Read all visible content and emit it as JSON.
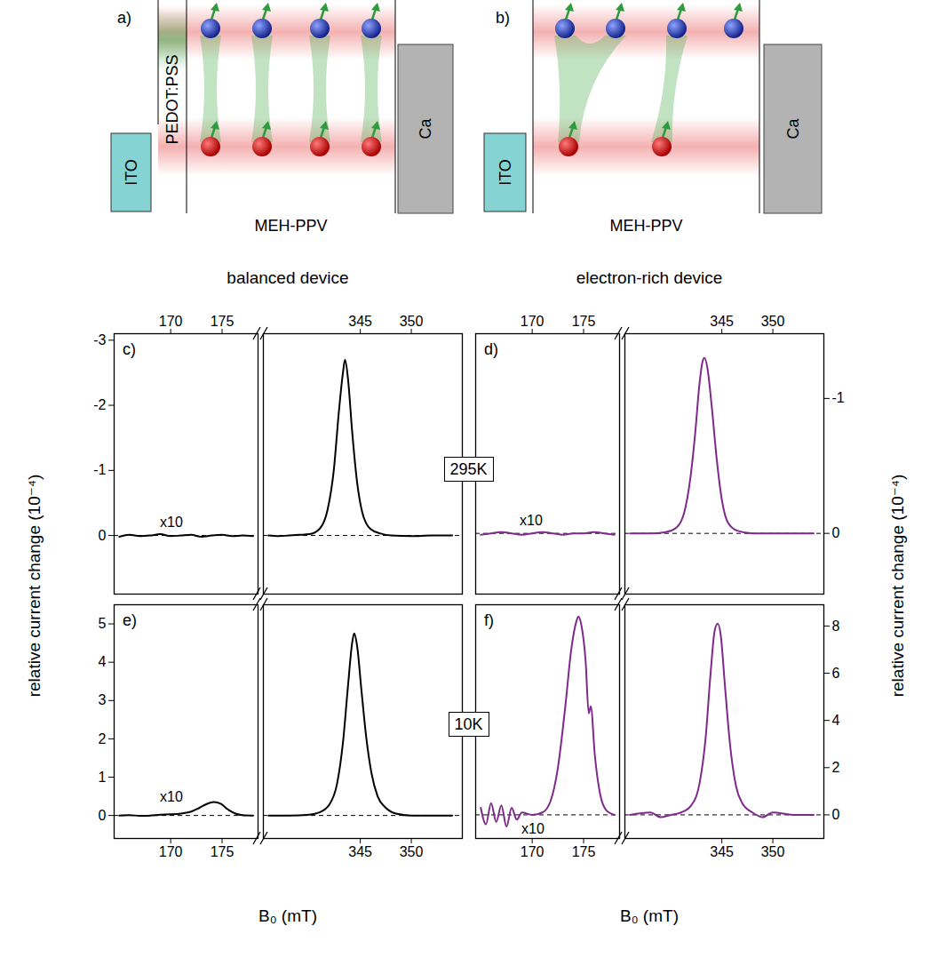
{
  "diagrams": [
    {
      "label": "a)",
      "layers": {
        "anode": "ITO",
        "hole_layer": "PEDOT:PSS",
        "polymer": "MEH-PPV",
        "cathode": "Ca"
      }
    },
    {
      "label": "b)",
      "layers": {
        "anode": "ITO",
        "polymer": "MEH-PPV",
        "cathode": "Ca"
      }
    }
  ],
  "columns": [
    "balanced device",
    "electron-rich device"
  ],
  "temperatures": [
    "295K",
    "10K"
  ],
  "chart_data": [
    {
      "type": "line",
      "title": "c)",
      "annotation": "x10",
      "ylabel": "relative current change (10⁻⁴)",
      "color": "#000000",
      "xlim": [
        [
          164.5,
          178.5
        ],
        [
          335.5,
          355
        ]
      ],
      "xticks": [
        [
          170,
          175
        ],
        [
          345,
          350
        ]
      ],
      "ylim": [
        0.9,
        -3.1
      ],
      "yticks": [
        0,
        -1,
        -2,
        -3
      ],
      "x": [
        [
          165,
          166,
          167,
          168,
          169,
          170,
          171,
          172,
          173,
          174,
          175,
          176,
          177,
          178
        ],
        [
          336,
          337,
          338,
          339,
          340,
          341,
          341.8,
          342.4,
          342.9,
          343.3,
          343.5,
          343.8,
          344.2,
          344.7,
          345.2,
          346,
          347,
          348,
          350,
          352,
          354
        ]
      ],
      "values": [
        [
          0.02,
          -0.01,
          0.01,
          0,
          -0.02,
          0.01,
          0,
          -0.01,
          0.02,
          0,
          -0.01,
          0.01,
          0,
          0.01
        ],
        [
          0,
          0.01,
          0,
          -0.01,
          -0.02,
          -0.1,
          -0.4,
          -1.0,
          -1.9,
          -2.5,
          -2.7,
          -2.4,
          -1.6,
          -0.8,
          -0.35,
          -0.1,
          -0.03,
          0,
          0.01,
          0,
          0
        ]
      ]
    },
    {
      "type": "line",
      "title": "d)",
      "annotation": "x10",
      "ylabel": "relative current change (10⁻⁴)",
      "color": "#7d2a8a",
      "xlim": [
        [
          164.5,
          178.5
        ],
        [
          335.5,
          355
        ]
      ],
      "xticks": [
        [
          170,
          175
        ],
        [
          345,
          350
        ]
      ],
      "ylim": [
        0.45,
        -1.48
      ],
      "yticks": [
        0,
        -1
      ],
      "x": [
        [
          165,
          166,
          167,
          168,
          169,
          170,
          171,
          172,
          173,
          174,
          175,
          176,
          177,
          178
        ],
        [
          336,
          338,
          339.5,
          340.5,
          341.3,
          341.9,
          342.4,
          342.8,
          343.1,
          343.3,
          343.6,
          344,
          344.5,
          345,
          345.6,
          346.5,
          348,
          351,
          354
        ]
      ],
      "values": [
        [
          0.01,
          0,
          -0.01,
          0,
          0.01,
          0,
          -0.01,
          0,
          0.01,
          0,
          0,
          -0.01,
          0,
          0.01
        ],
        [
          0,
          0,
          -0.01,
          -0.04,
          -0.15,
          -0.4,
          -0.75,
          -1.1,
          -1.27,
          -1.3,
          -1.22,
          -0.95,
          -0.55,
          -0.25,
          -0.08,
          -0.02,
          0,
          0,
          0
        ]
      ]
    },
    {
      "type": "line",
      "title": "e)",
      "annotation": "x10",
      "xlabel": "B₀ (mT)",
      "color": "#000000",
      "xlim": [
        [
          164.5,
          178.5
        ],
        [
          335.5,
          355
        ]
      ],
      "xticks": [
        [
          170,
          175
        ],
        [
          345,
          350
        ]
      ],
      "ylim": [
        -0.6,
        5.5
      ],
      "yticks": [
        0,
        1,
        2,
        3,
        4,
        5
      ],
      "x": [
        [
          165,
          166,
          167,
          168,
          169,
          170,
          171,
          172,
          172.8,
          173.5,
          174.2,
          174.9,
          175.6,
          176.3,
          177,
          178
        ],
        [
          336,
          338,
          340,
          341,
          342,
          342.7,
          343.3,
          343.8,
          344.2,
          344.4,
          344.7,
          345.1,
          345.6,
          346.1,
          346.7,
          347.5,
          348.5,
          350,
          352,
          354
        ]
      ],
      "values": [
        [
          0,
          0.01,
          -0.01,
          0,
          0.02,
          0.03,
          0.05,
          0.1,
          0.2,
          0.3,
          0.35,
          0.3,
          0.15,
          0.05,
          0.01,
          0
        ],
        [
          0,
          0,
          0.02,
          0.08,
          0.3,
          0.8,
          1.9,
          3.4,
          4.5,
          4.75,
          4.4,
          3.3,
          2.0,
          1.1,
          0.5,
          0.2,
          0.05,
          0,
          0,
          0
        ]
      ]
    },
    {
      "type": "line",
      "title": "f)",
      "annotation": "x10",
      "xlabel": "B₀ (mT)",
      "color": "#7d2a8a",
      "xlim": [
        [
          164.5,
          178.5
        ],
        [
          335.5,
          355
        ]
      ],
      "xticks": [
        [
          170,
          175
        ],
        [
          345,
          350
        ]
      ],
      "ylim": [
        -1,
        8.9
      ],
      "yticks": [
        0,
        2,
        4,
        6,
        8
      ],
      "x": [
        [
          165,
          165.5,
          166,
          166.5,
          167,
          167.5,
          168,
          168.5,
          169,
          170,
          171,
          171.8,
          172.5,
          173.2,
          173.8,
          174.3,
          174.5,
          174.8,
          175.2,
          175.5,
          175.7,
          176.1,
          176.6,
          177.2,
          178
        ],
        [
          336,
          338,
          339,
          340,
          341,
          342,
          342.8,
          343.4,
          343.9,
          344.3,
          344.6,
          344.9,
          345.3,
          345.8,
          346.4,
          347,
          348,
          349,
          350,
          352,
          354
        ]
      ],
      "values": [
        [
          0.3,
          -0.4,
          0.5,
          -0.3,
          0.4,
          -0.5,
          0.3,
          -0.2,
          0.1,
          0,
          0.1,
          0.6,
          2.0,
          4.5,
          7.0,
          8.2,
          8.4,
          8.0,
          6.5,
          4.3,
          4.6,
          2.5,
          0.9,
          0.2,
          0
        ],
        [
          0,
          0.1,
          -0.1,
          0,
          0.1,
          0.4,
          1.3,
          3.2,
          6.0,
          7.8,
          8.1,
          7.6,
          5.5,
          3.0,
          1.2,
          0.5,
          0.1,
          -0.1,
          0.1,
          0,
          0
        ]
      ]
    }
  ]
}
